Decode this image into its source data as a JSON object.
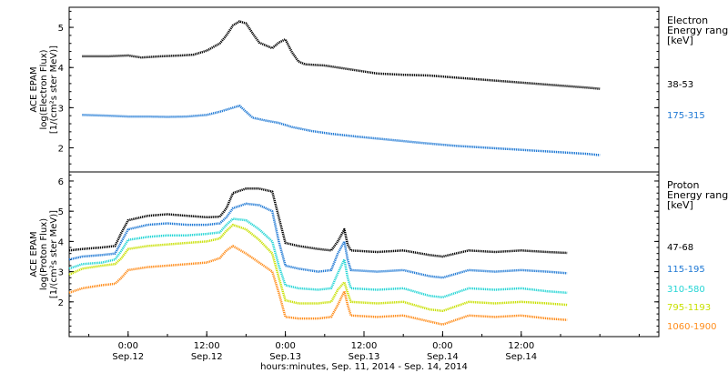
{
  "chart_data": [
    {
      "type": "line",
      "panel": "electron",
      "ylabel_lines": [
        "ACE EPAM",
        "log(Electron Flux)",
        "[1/(cm²s ster MeV)]"
      ],
      "ylim": [
        1.4,
        5.5
      ],
      "yticks": [
        2,
        3,
        4,
        5
      ],
      "xlim": [
        -9,
        81
      ],
      "legend_title": [
        "Electron",
        "Energy ranges",
        "[keV]"
      ],
      "series": [
        {
          "name": "38-53",
          "color": "#000000",
          "points": [
            [
              -7,
              4.28
            ],
            [
              -3,
              4.28
            ],
            [
              0,
              4.3
            ],
            [
              2,
              4.25
            ],
            [
              5,
              4.28
            ],
            [
              8,
              4.3
            ],
            [
              10,
              4.32
            ],
            [
              12,
              4.42
            ],
            [
              14,
              4.6
            ],
            [
              15,
              4.8
            ],
            [
              16,
              5.05
            ],
            [
              17,
              5.15
            ],
            [
              18,
              5.1
            ],
            [
              19,
              4.85
            ],
            [
              20,
              4.62
            ],
            [
              21,
              4.55
            ],
            [
              22,
              4.48
            ],
            [
              23,
              4.62
            ],
            [
              24,
              4.7
            ],
            [
              25,
              4.38
            ],
            [
              26,
              4.15
            ],
            [
              27,
              4.08
            ],
            [
              30,
              4.05
            ],
            [
              34,
              3.95
            ],
            [
              38,
              3.85
            ],
            [
              42,
              3.82
            ],
            [
              46,
              3.8
            ],
            [
              50,
              3.75
            ],
            [
              54,
              3.7
            ],
            [
              58,
              3.65
            ],
            [
              62,
              3.6
            ],
            [
              66,
              3.55
            ],
            [
              70,
              3.5
            ],
            [
              72,
              3.47
            ]
          ]
        },
        {
          "name": "175-315",
          "color": "#1e78d4",
          "points": [
            [
              -7,
              2.82
            ],
            [
              -3,
              2.8
            ],
            [
              0,
              2.78
            ],
            [
              3,
              2.78
            ],
            [
              6,
              2.77
            ],
            [
              9,
              2.78
            ],
            [
              12,
              2.82
            ],
            [
              14,
              2.9
            ],
            [
              16,
              3.0
            ],
            [
              17,
              3.05
            ],
            [
              18,
              2.9
            ],
            [
              19,
              2.75
            ],
            [
              21,
              2.68
            ],
            [
              23,
              2.62
            ],
            [
              25,
              2.52
            ],
            [
              28,
              2.42
            ],
            [
              31,
              2.35
            ],
            [
              35,
              2.28
            ],
            [
              40,
              2.2
            ],
            [
              45,
              2.12
            ],
            [
              50,
              2.05
            ],
            [
              55,
              2.0
            ],
            [
              60,
              1.95
            ],
            [
              65,
              1.9
            ],
            [
              70,
              1.85
            ],
            [
              72,
              1.82
            ]
          ]
        }
      ]
    },
    {
      "type": "line",
      "panel": "proton",
      "ylabel_lines": [
        "ACE EPAM",
        "log(Proton Flux)",
        "[1/(cm²s ster MeV)]"
      ],
      "ylim": [
        0.85,
        6.3
      ],
      "yticks": [
        2,
        3,
        4,
        5,
        6
      ],
      "xlim": [
        -9,
        81
      ],
      "xticks": [
        {
          "x": 0,
          "lines": [
            "0:00",
            "Sep.12"
          ]
        },
        {
          "x": 12,
          "lines": [
            "12:00",
            "Sep.12"
          ]
        },
        {
          "x": 24,
          "lines": [
            "0:00",
            "Sep.13"
          ]
        },
        {
          "x": 36,
          "lines": [
            "12:00",
            "Sep.13"
          ]
        },
        {
          "x": 48,
          "lines": [
            "0:00",
            "Sep.14"
          ]
        },
        {
          "x": 60,
          "lines": [
            "12:00",
            "Sep.14"
          ]
        }
      ],
      "xlabel": "hours:minutes, Sep. 11, 2014 - Sep. 14, 2014",
      "legend_title": [
        "Proton",
        "Energy ranges",
        "[keV]"
      ],
      "series": [
        {
          "name": "47-68",
          "color": "#000000",
          "points": [
            [
              -9,
              3.7
            ],
            [
              -7,
              3.75
            ],
            [
              -4,
              3.8
            ],
            [
              -2,
              3.85
            ],
            [
              -1,
              4.3
            ],
            [
              0,
              4.7
            ],
            [
              3,
              4.85
            ],
            [
              6,
              4.9
            ],
            [
              9,
              4.85
            ],
            [
              12,
              4.8
            ],
            [
              14,
              4.82
            ],
            [
              15,
              5.1
            ],
            [
              16,
              5.6
            ],
            [
              18,
              5.75
            ],
            [
              20,
              5.75
            ],
            [
              22,
              5.65
            ],
            [
              23,
              4.8
            ],
            [
              24,
              3.95
            ],
            [
              26,
              3.85
            ],
            [
              29,
              3.75
            ],
            [
              31,
              3.7
            ],
            [
              32,
              4.0
            ],
            [
              33,
              4.4
            ],
            [
              33.5,
              3.9
            ],
            [
              34,
              3.7
            ],
            [
              38,
              3.65
            ],
            [
              42,
              3.7
            ],
            [
              46,
              3.55
            ],
            [
              48,
              3.5
            ],
            [
              52,
              3.7
            ],
            [
              56,
              3.65
            ],
            [
              60,
              3.7
            ],
            [
              64,
              3.65
            ],
            [
              67,
              3.62
            ]
          ]
        },
        {
          "name": "115-195",
          "color": "#1e78d4",
          "points": [
            [
              -9,
              3.4
            ],
            [
              -7,
              3.5
            ],
            [
              -4,
              3.55
            ],
            [
              -2,
              3.6
            ],
            [
              -1,
              4.0
            ],
            [
              0,
              4.4
            ],
            [
              3,
              4.55
            ],
            [
              6,
              4.6
            ],
            [
              9,
              4.55
            ],
            [
              12,
              4.55
            ],
            [
              14,
              4.6
            ],
            [
              15,
              4.8
            ],
            [
              16,
              5.1
            ],
            [
              18,
              5.25
            ],
            [
              20,
              5.2
            ],
            [
              22,
              5.0
            ],
            [
              23,
              4.0
            ],
            [
              24,
              3.2
            ],
            [
              26,
              3.1
            ],
            [
              29,
              3.0
            ],
            [
              31,
              3.05
            ],
            [
              32,
              3.6
            ],
            [
              33,
              4.0
            ],
            [
              33.5,
              3.4
            ],
            [
              34,
              3.05
            ],
            [
              38,
              3.0
            ],
            [
              42,
              3.05
            ],
            [
              46,
              2.85
            ],
            [
              48,
              2.8
            ],
            [
              52,
              3.05
            ],
            [
              56,
              3.0
            ],
            [
              60,
              3.05
            ],
            [
              64,
              3.0
            ],
            [
              67,
              2.95
            ]
          ]
        },
        {
          "name": "310-580",
          "color": "#25d5d5",
          "points": [
            [
              -9,
              3.1
            ],
            [
              -7,
              3.25
            ],
            [
              -4,
              3.3
            ],
            [
              -2,
              3.4
            ],
            [
              -1,
              3.7
            ],
            [
              0,
              4.05
            ],
            [
              3,
              4.15
            ],
            [
              6,
              4.2
            ],
            [
              9,
              4.2
            ],
            [
              12,
              4.25
            ],
            [
              14,
              4.3
            ],
            [
              15,
              4.55
            ],
            [
              16,
              4.75
            ],
            [
              18,
              4.7
            ],
            [
              20,
              4.4
            ],
            [
              22,
              4.0
            ],
            [
              23,
              3.2
            ],
            [
              24,
              2.55
            ],
            [
              26,
              2.45
            ],
            [
              29,
              2.4
            ],
            [
              31,
              2.45
            ],
            [
              32,
              2.95
            ],
            [
              33,
              3.4
            ],
            [
              33.5,
              2.8
            ],
            [
              34,
              2.45
            ],
            [
              38,
              2.4
            ],
            [
              42,
              2.45
            ],
            [
              46,
              2.2
            ],
            [
              48,
              2.15
            ],
            [
              52,
              2.45
            ],
            [
              56,
              2.4
            ],
            [
              60,
              2.45
            ],
            [
              64,
              2.35
            ],
            [
              67,
              2.3
            ]
          ]
        },
        {
          "name": "795-1193",
          "color": "#c8e000",
          "points": [
            [
              -9,
              2.9
            ],
            [
              -7,
              3.1
            ],
            [
              -4,
              3.2
            ],
            [
              -2,
              3.25
            ],
            [
              -1,
              3.45
            ],
            [
              0,
              3.75
            ],
            [
              3,
              3.85
            ],
            [
              6,
              3.9
            ],
            [
              9,
              3.95
            ],
            [
              12,
              4.0
            ],
            [
              14,
              4.1
            ],
            [
              15,
              4.35
            ],
            [
              16,
              4.55
            ],
            [
              18,
              4.4
            ],
            [
              20,
              4.05
            ],
            [
              22,
              3.6
            ],
            [
              23,
              2.8
            ],
            [
              24,
              2.05
            ],
            [
              26,
              1.95
            ],
            [
              29,
              1.95
            ],
            [
              31,
              2.0
            ],
            [
              32,
              2.4
            ],
            [
              33,
              2.65
            ],
            [
              33.5,
              2.3
            ],
            [
              34,
              2.0
            ],
            [
              38,
              1.95
            ],
            [
              42,
              2.0
            ],
            [
              46,
              1.75
            ],
            [
              48,
              1.7
            ],
            [
              52,
              2.0
            ],
            [
              56,
              1.95
            ],
            [
              60,
              2.0
            ],
            [
              64,
              1.95
            ],
            [
              67,
              1.9
            ]
          ]
        },
        {
          "name": "1060-1900",
          "color": "#ff8c1a",
          "points": [
            [
              -9,
              2.3
            ],
            [
              -7,
              2.45
            ],
            [
              -4,
              2.55
            ],
            [
              -2,
              2.6
            ],
            [
              -1,
              2.8
            ],
            [
              0,
              3.05
            ],
            [
              3,
              3.15
            ],
            [
              6,
              3.2
            ],
            [
              9,
              3.25
            ],
            [
              12,
              3.3
            ],
            [
              14,
              3.45
            ],
            [
              15,
              3.7
            ],
            [
              16,
              3.85
            ],
            [
              18,
              3.6
            ],
            [
              20,
              3.3
            ],
            [
              22,
              3.0
            ],
            [
              23,
              2.3
            ],
            [
              24,
              1.5
            ],
            [
              26,
              1.45
            ],
            [
              29,
              1.45
            ],
            [
              31,
              1.5
            ],
            [
              32,
              1.9
            ],
            [
              33,
              2.35
            ],
            [
              33.5,
              1.9
            ],
            [
              34,
              1.55
            ],
            [
              38,
              1.5
            ],
            [
              42,
              1.55
            ],
            [
              46,
              1.35
            ],
            [
              48,
              1.25
            ],
            [
              52,
              1.55
            ],
            [
              56,
              1.5
            ],
            [
              60,
              1.55
            ],
            [
              64,
              1.45
            ],
            [
              67,
              1.4
            ]
          ]
        }
      ]
    }
  ]
}
